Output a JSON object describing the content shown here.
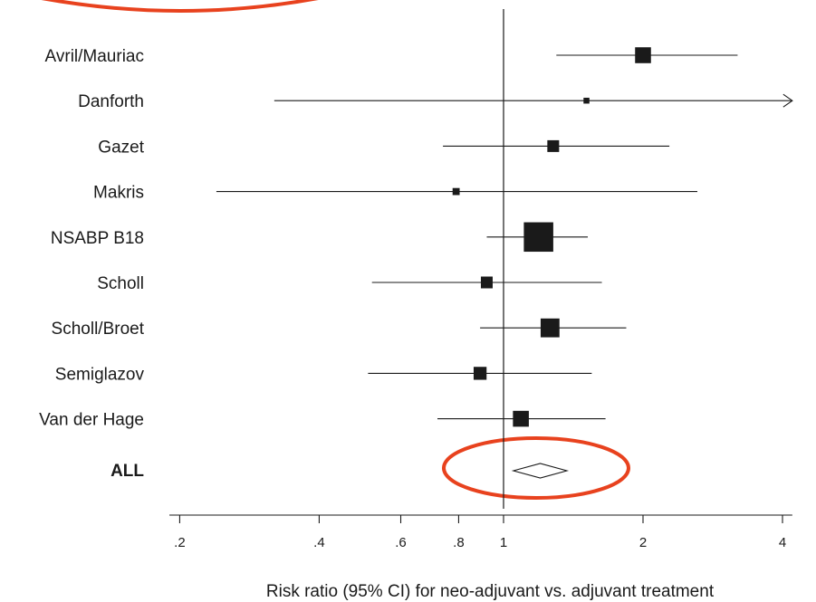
{
  "chart_data": {
    "type": "forest",
    "xlabel": "Risk ratio (95% CI) for neo-adjuvant vs. adjuvant treatment",
    "x_scale": "log",
    "xlim": [
      0.19,
      4.2
    ],
    "reference_line": 1,
    "x_ticks": [
      {
        "value": 0.2,
        "label": ".2"
      },
      {
        "value": 0.4,
        "label": ".4"
      },
      {
        "value": 0.6,
        "label": ".6"
      },
      {
        "value": 0.8,
        "label": ".8"
      },
      {
        "value": 1,
        "label": "1"
      },
      {
        "value": 2,
        "label": "2"
      },
      {
        "value": 4,
        "label": "4"
      }
    ],
    "studies": [
      {
        "name": "Avril/Mauriac",
        "rr": 2.0,
        "ci_low": 1.3,
        "ci_high": 3.2,
        "weight": 1.35,
        "arrow_high": false
      },
      {
        "name": "Danforth",
        "rr": 1.51,
        "ci_low": 0.32,
        "ci_high": 4.2,
        "weight": 0.5,
        "arrow_high": true
      },
      {
        "name": "Gazet",
        "rr": 1.28,
        "ci_low": 0.74,
        "ci_high": 2.28,
        "weight": 1.0,
        "arrow_high": false
      },
      {
        "name": "Makris",
        "rr": 0.79,
        "ci_low": 0.24,
        "ci_high": 2.62,
        "weight": 0.6,
        "arrow_high": false
      },
      {
        "name": "NSABP B18",
        "rr": 1.19,
        "ci_low": 0.92,
        "ci_high": 1.52,
        "weight": 2.5,
        "arrow_high": false
      },
      {
        "name": "Scholl",
        "rr": 0.92,
        "ci_low": 0.52,
        "ci_high": 1.63,
        "weight": 1.0,
        "arrow_high": false
      },
      {
        "name": "Scholl/Broet",
        "rr": 1.26,
        "ci_low": 0.89,
        "ci_high": 1.84,
        "weight": 1.6,
        "arrow_high": false
      },
      {
        "name": "Semiglazov",
        "rr": 0.89,
        "ci_low": 0.51,
        "ci_high": 1.55,
        "weight": 1.1,
        "arrow_high": false
      },
      {
        "name": "Van der Hage",
        "rr": 1.09,
        "ci_low": 0.72,
        "ci_high": 1.66,
        "weight": 1.35,
        "arrow_high": false
      }
    ],
    "pooled": {
      "name": "ALL",
      "rr": 1.2,
      "ci_low": 1.05,
      "ci_high": 1.37
    },
    "annotation_color": "#e8421e"
  }
}
